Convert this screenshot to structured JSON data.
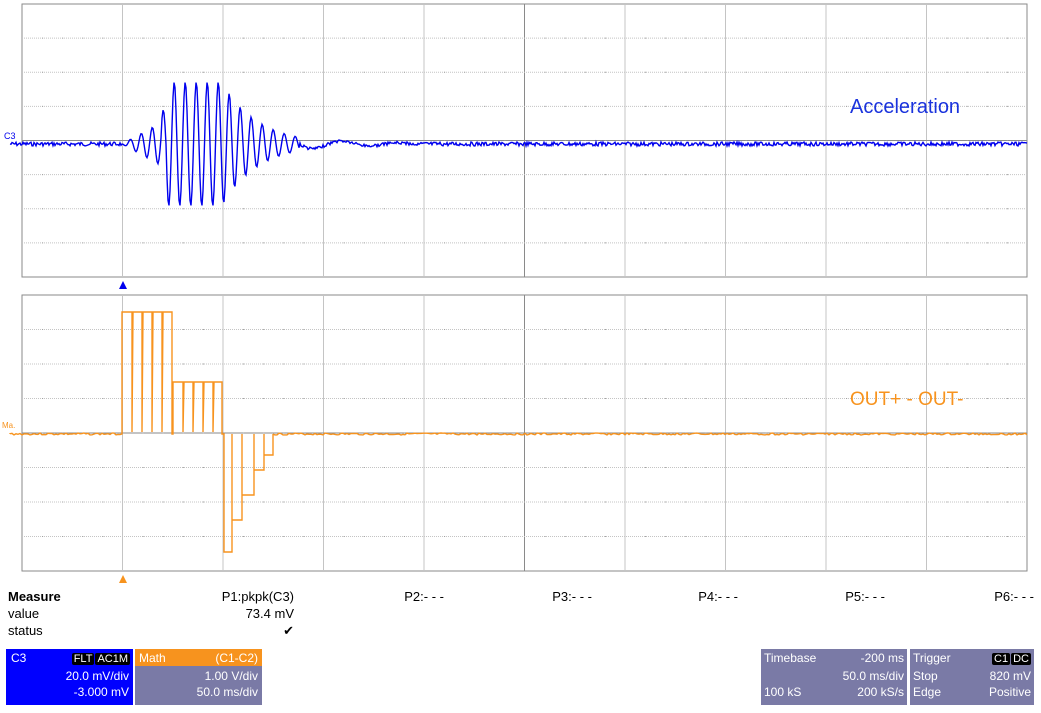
{
  "channels": {
    "c3_marker": "C3",
    "math_marker": "Ma.",
    "c3_trace_label": "Acceleration",
    "math_trace_label": "OUT+ - OUT-"
  },
  "measure": {
    "header": "Measure",
    "row_value": "value",
    "row_status": "status",
    "params": [
      {
        "name": "P1:pkpk(C3)",
        "value": "73.4 mV",
        "status": "✔"
      },
      {
        "name": "P2:- - -"
      },
      {
        "name": "P3:- - -"
      },
      {
        "name": "P4:- - -"
      },
      {
        "name": "P5:- - -"
      },
      {
        "name": "P6:- - -"
      }
    ]
  },
  "c3_box": {
    "title": "C3",
    "tags": [
      "FLT",
      "AC1M"
    ],
    "vdiv": "20.0 mV/div",
    "offset": "-3.000 mV",
    "color": "#0000ff"
  },
  "math_box": {
    "title": "Math",
    "expr": "(C1-C2)",
    "vdiv": "1.00 V/div",
    "tdiv": "50.0 ms/div",
    "color": "#f08c1c"
  },
  "timebase": {
    "label": "Timebase",
    "delay": "-200 ms",
    "tdiv": "50.0 ms/div",
    "samples": "100 kS",
    "rate": "200 kS/s"
  },
  "trigger": {
    "label": "Trigger",
    "tags": [
      "C1",
      "DC"
    ],
    "mode": "Stop",
    "level": "820 mV",
    "type": "Edge",
    "slope": "Positive"
  },
  "colors": {
    "c3": "#0000ee",
    "math": "#f7931e",
    "grid": "#a0a0a0",
    "panel_box": "#7a7aa6"
  }
}
